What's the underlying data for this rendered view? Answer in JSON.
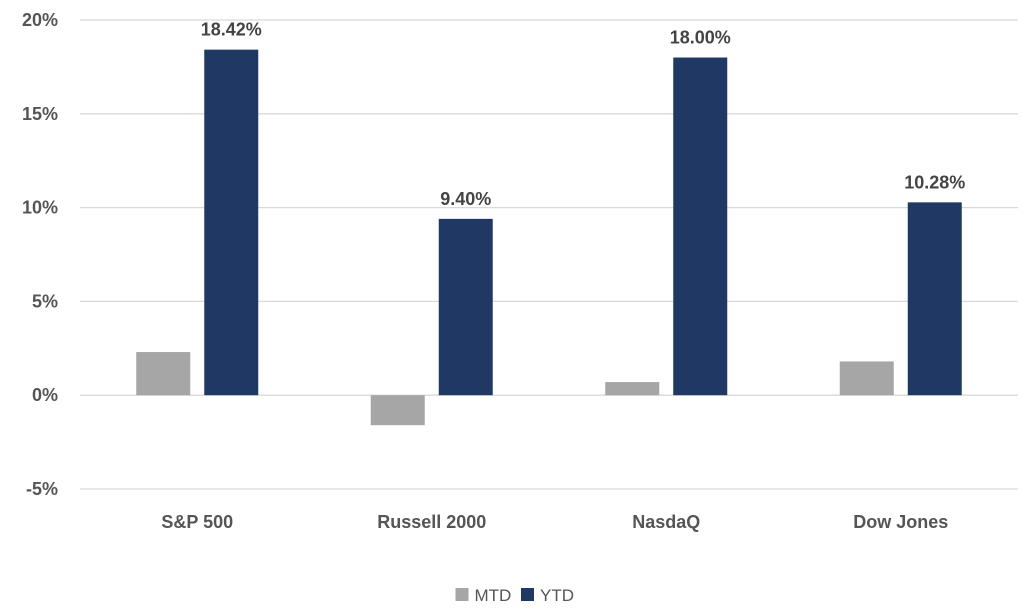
{
  "chart_data": {
    "type": "bar",
    "categories": [
      "S&P 500",
      "Russell 2000",
      "NasdaQ",
      "Dow Jones"
    ],
    "series": [
      {
        "name": "MTD",
        "values": [
          2.3,
          -1.6,
          0.7,
          1.8
        ],
        "color": "#a6a6a6"
      },
      {
        "name": "YTD",
        "values": [
          18.42,
          9.4,
          18.0,
          10.28
        ],
        "color": "#1f3864"
      }
    ],
    "data_labels": {
      "YTD": [
        "18.42%",
        "9.40%",
        "18.00%",
        "10.28%"
      ]
    },
    "y_ticks": [
      20,
      15,
      10,
      5,
      0,
      -5
    ],
    "y_tick_labels": [
      "20%",
      "15%",
      "10%",
      "5%",
      "0%",
      "-5%"
    ],
    "ylim": [
      -5,
      20
    ],
    "grid": true,
    "legend_position": "bottom-center",
    "title": "",
    "xlabel": "",
    "ylabel": ""
  }
}
